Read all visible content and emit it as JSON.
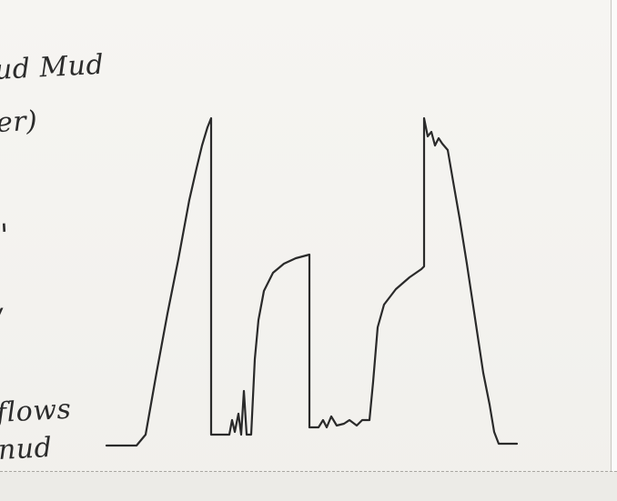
{
  "annotations": {
    "line1": "ud Mud",
    "line2": "er)",
    "line3": "\"",
    "line4": "/",
    "line5": "flows",
    "line6": "nud"
  },
  "chart_data": {
    "type": "line",
    "title": "",
    "xlabel": "",
    "ylabel": "",
    "grid": false,
    "series": [
      {
        "points": [
          [
            117,
            490
          ],
          [
            150,
            490
          ],
          [
            160,
            478
          ],
          [
            172,
            410
          ],
          [
            184,
            345
          ],
          [
            196,
            285
          ],
          [
            208,
            220
          ],
          [
            216,
            185
          ],
          [
            222,
            160
          ],
          [
            228,
            140
          ],
          [
            232,
            130
          ],
          [
            232,
            478
          ],
          [
            252,
            478
          ],
          [
            255,
            462
          ],
          [
            258,
            475
          ],
          [
            262,
            455
          ],
          [
            265,
            478
          ],
          [
            268,
            430
          ],
          [
            271,
            478
          ],
          [
            276,
            478
          ],
          [
            280,
            395
          ],
          [
            284,
            352
          ],
          [
            290,
            320
          ],
          [
            300,
            300
          ],
          [
            312,
            290
          ],
          [
            325,
            284
          ],
          [
            340,
            280
          ],
          [
            340,
            470
          ],
          [
            350,
            470
          ],
          [
            355,
            462
          ],
          [
            359,
            470
          ],
          [
            364,
            458
          ],
          [
            370,
            468
          ],
          [
            378,
            466
          ],
          [
            384,
            462
          ],
          [
            392,
            468
          ],
          [
            398,
            462
          ],
          [
            406,
            462
          ],
          [
            410,
            420
          ],
          [
            415,
            360
          ],
          [
            422,
            335
          ],
          [
            435,
            318
          ],
          [
            450,
            305
          ],
          [
            463,
            296
          ],
          [
            466,
            293
          ],
          [
            466,
            130
          ],
          [
            470,
            150
          ],
          [
            474,
            145
          ],
          [
            478,
            160
          ],
          [
            482,
            152
          ],
          [
            486,
            158
          ],
          [
            492,
            165
          ],
          [
            498,
            200
          ],
          [
            505,
            240
          ],
          [
            513,
            290
          ],
          [
            522,
            350
          ],
          [
            531,
            410
          ],
          [
            538,
            445
          ],
          [
            543,
            475
          ],
          [
            548,
            488
          ],
          [
            568,
            488
          ]
        ]
      }
    ]
  }
}
